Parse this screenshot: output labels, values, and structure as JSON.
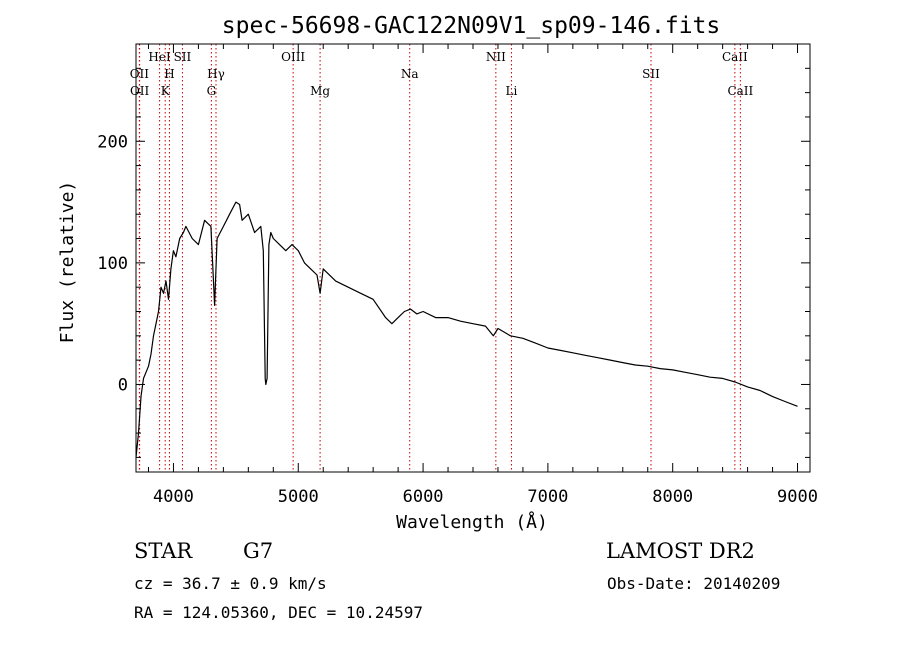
{
  "chart_data": {
    "type": "line",
    "title": "spec-56698-GAC122N09V1_sp09-146.fits",
    "xlabel": "Wavelength (Å)",
    "ylabel": "Flux (relative)",
    "xlim": [
      3700,
      9100
    ],
    "ylim": [
      -72,
      280
    ],
    "xticks": [
      4000,
      5000,
      6000,
      7000,
      8000,
      9000
    ],
    "yticks": [
      0,
      100,
      200
    ],
    "grid": false,
    "line_color": "#000000",
    "marker_color": "#cc0000",
    "spectral_lines": [
      {
        "label": "OII",
        "wavelength": 3727,
        "row": 2
      },
      {
        "label": "OII",
        "wavelength": 3729,
        "row": 3
      },
      {
        "label": "HeI",
        "wavelength": 3889,
        "row": 1
      },
      {
        "label": "H",
        "wavelength": 3968,
        "row": 2
      },
      {
        "label": "K",
        "wavelength": 3934,
        "row": 3
      },
      {
        "label": "SII",
        "wavelength": 4072,
        "row": 1
      },
      {
        "label": "Hγ",
        "wavelength": 4341,
        "row": 2
      },
      {
        "label": "G",
        "wavelength": 4304,
        "row": 3
      },
      {
        "label": "OIII",
        "wavelength": 4959,
        "row": 1
      },
      {
        "label": "Mg",
        "wavelength": 5175,
        "row": 3
      },
      {
        "label": "Na",
        "wavelength": 5893,
        "row": 2
      },
      {
        "label": "NII",
        "wavelength": 6583,
        "row": 1
      },
      {
        "label": "Li",
        "wavelength": 6708,
        "row": 3
      },
      {
        "label": "SII",
        "wavelength": 7826,
        "row": 2
      },
      {
        "label": "CaII",
        "wavelength": 8498,
        "row": 1
      },
      {
        "label": "CaII",
        "wavelength": 8542,
        "row": 3
      }
    ],
    "series": [
      {
        "x": [
          3700,
          3720,
          3740,
          3760,
          3780,
          3800,
          3820,
          3840,
          3860,
          3880,
          3900,
          3920,
          3940,
          3960,
          3980,
          4000,
          4020,
          4050,
          4080,
          4100,
          4150,
          4200,
          4250,
          4300,
          4330,
          4350,
          4400,
          4450,
          4500,
          4530,
          4550,
          4600,
          4650,
          4700,
          4720,
          4735,
          4740,
          4750,
          4765,
          4780,
          4800,
          4850,
          4900,
          4950,
          5000,
          5050,
          5100,
          5150,
          5175,
          5200,
          5300,
          5400,
          5500,
          5600,
          5700,
          5750,
          5800,
          5850,
          5900,
          5950,
          6000,
          6100,
          6200,
          6300,
          6400,
          6500,
          6563,
          6600,
          6700,
          6800,
          6900,
          7000,
          7100,
          7200,
          7300,
          7400,
          7500,
          7600,
          7700,
          7800,
          7900,
          8000,
          8100,
          8200,
          8300,
          8400,
          8500,
          8600,
          8700,
          8800,
          8900,
          9000
        ],
        "y": [
          -60,
          -40,
          -10,
          5,
          10,
          15,
          25,
          40,
          50,
          60,
          80,
          75,
          85,
          70,
          95,
          110,
          105,
          120,
          125,
          130,
          120,
          115,
          135,
          130,
          65,
          120,
          130,
          140,
          150,
          148,
          135,
          140,
          125,
          130,
          110,
          5,
          0,
          5,
          115,
          125,
          120,
          115,
          110,
          115,
          110,
          100,
          95,
          90,
          75,
          95,
          85,
          80,
          75,
          70,
          55,
          50,
          55,
          60,
          62,
          58,
          60,
          55,
          55,
          52,
          50,
          48,
          40,
          46,
          40,
          38,
          34,
          30,
          28,
          26,
          24,
          22,
          20,
          18,
          16,
          15,
          13,
          12,
          10,
          8,
          6,
          5,
          2,
          -2,
          -5,
          -10,
          -14,
          -18
        ]
      }
    ]
  },
  "info": {
    "object_class": "STAR",
    "subclass": "G7",
    "survey": "LAMOST DR2",
    "cz": "cz = 36.7 ± 0.9 km/s",
    "obs_date": "Obs-Date: 20140209",
    "coords": "RA = 124.05360, DEC =  10.24597"
  }
}
